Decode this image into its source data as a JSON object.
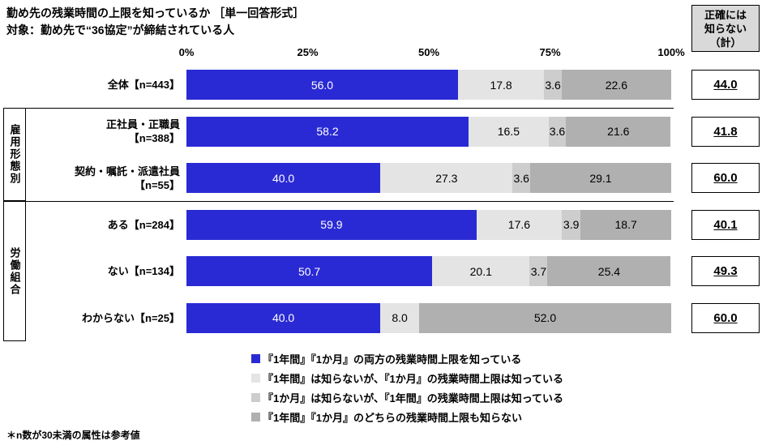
{
  "title": "勤め先の残業時間の上限を知っているか ［単一回答形式］",
  "subtitle": "対象：勤め先で“36協定”が締結されている人",
  "right_column_header": "正確には\n知らない\n（計）",
  "footnote": "＊n数が30未満の属性は参考値",
  "axis_ticks": [
    "0%",
    "25%",
    "50%",
    "75%",
    "100%"
  ],
  "colors": {
    "segments": [
      "#2a2ad5",
      "#e4e4e4",
      "#cdcdcd",
      "#b0b0b0"
    ],
    "header_bg": "#d9d9d9",
    "bar_label_on_blue": "#ffffff",
    "bar_label_on_gray": "#000000"
  },
  "chart_data": {
    "type": "bar",
    "stacked": true,
    "orientation": "horizontal",
    "xlim": [
      0,
      100
    ],
    "categories": [
      "全体【n=443】",
      "正社員・正職員\n【n=388】",
      "契約・嘱託・派遣社員\n【n=55】",
      "ある【n=284】",
      "ない【n=134】",
      "わからない【n=25】"
    ],
    "series": [
      {
        "name": "『1年間』『1か月』の両方の残業時間上限を知っている",
        "values": [
          56.0,
          58.2,
          40.0,
          59.9,
          50.7,
          40.0
        ]
      },
      {
        "name": "『1年間』は知らないが、『1か月』の残業時間上限は知っている",
        "values": [
          17.8,
          16.5,
          27.3,
          17.6,
          20.1,
          8.0
        ]
      },
      {
        "name": "『1か月』は知らないが、『1年間』の残業時間上限は知っている",
        "values": [
          3.6,
          3.6,
          3.6,
          3.9,
          3.7,
          0.0
        ]
      },
      {
        "name": "『1年間』『1か月』のどちらの残業時間上限も知らない",
        "values": [
          22.6,
          21.6,
          29.1,
          18.7,
          25.4,
          52.0
        ]
      }
    ],
    "totals_unknown": [
      "44.0",
      "41.8",
      "60.0",
      "40.1",
      "49.3",
      "60.0"
    ],
    "groups": [
      {
        "label": "雇用形態別",
        "first_row": 1,
        "last_row": 2
      },
      {
        "label": "労働組合",
        "first_row": 3,
        "last_row": 5
      }
    ]
  },
  "legend": [
    "『1年間』『1か月』の両方の残業時間上限を知っている",
    "『1年間』は知らないが、『1か月』の残業時間上限は知っている",
    "『1か月』は知らないが、『1年間』の残業時間上限は知っている",
    "『1年間』『1か月』のどちらの残業時間上限も知らない"
  ]
}
